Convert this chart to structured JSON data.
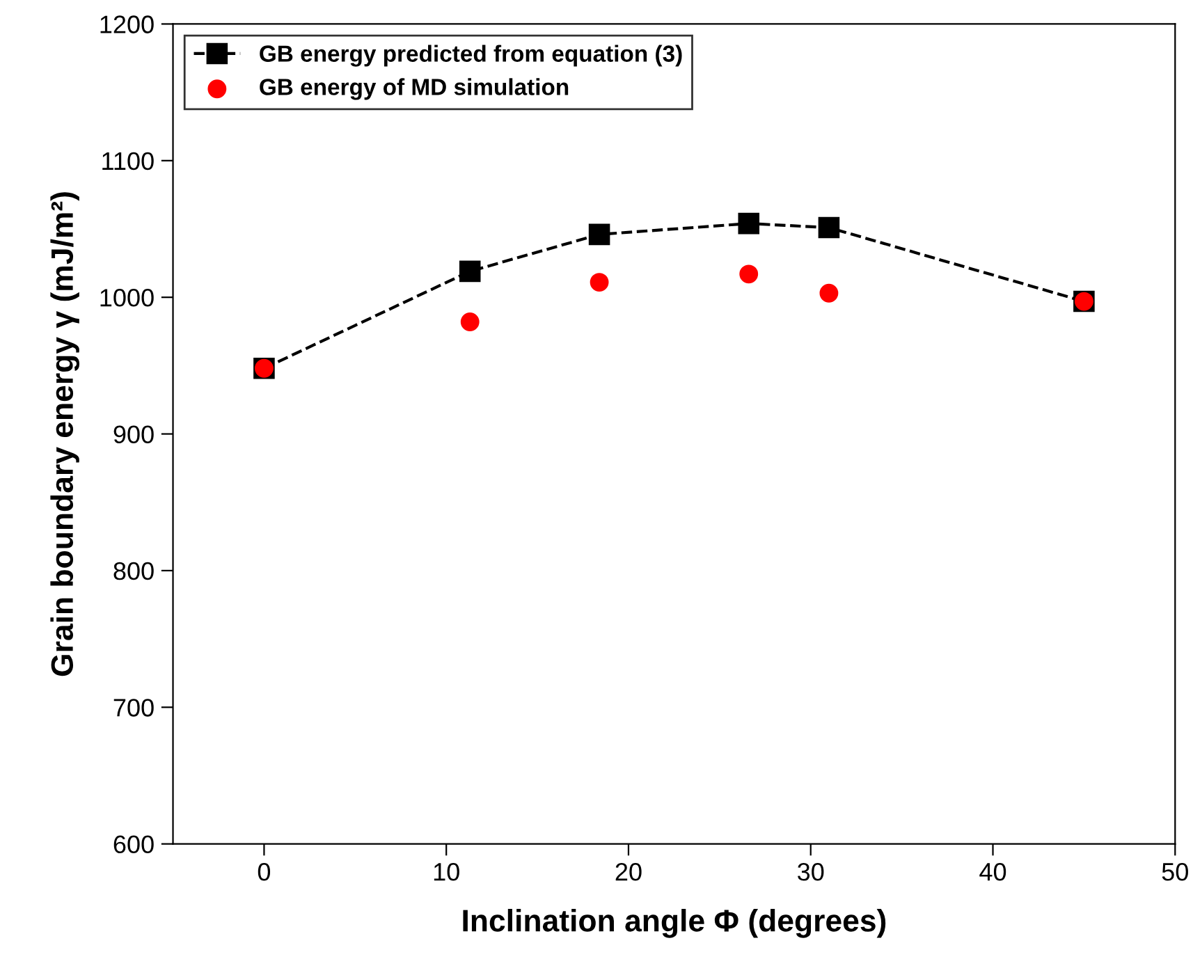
{
  "chart_data": {
    "type": "line",
    "xlabel": "Inclination angle Φ (degrees)",
    "ylabel": "Grain boundary energy γ (mJ/m²)",
    "x": [
      0,
      11.3,
      18.4,
      26.6,
      31,
      45
    ],
    "series": [
      {
        "name": "GB energy predicted from equation (3)",
        "color": "#000000",
        "marker": "square",
        "line_style": "dashed",
        "values": [
          948,
          1019,
          1046,
          1054,
          1051,
          997
        ]
      },
      {
        "name": "GB energy of MD simulation",
        "color": "#ff0000",
        "type": "scatter",
        "marker": "circle",
        "values": [
          948,
          982,
          1011,
          1017,
          1003,
          997
        ]
      }
    ],
    "xlim": [
      -5,
      50
    ],
    "xticks": [
      0,
      10,
      20,
      30,
      40,
      50
    ],
    "ylim": [
      600,
      1200
    ],
    "yticks": [
      600,
      700,
      800,
      900,
      1000,
      1100,
      1200
    ],
    "grid": false,
    "legend": "top left"
  }
}
